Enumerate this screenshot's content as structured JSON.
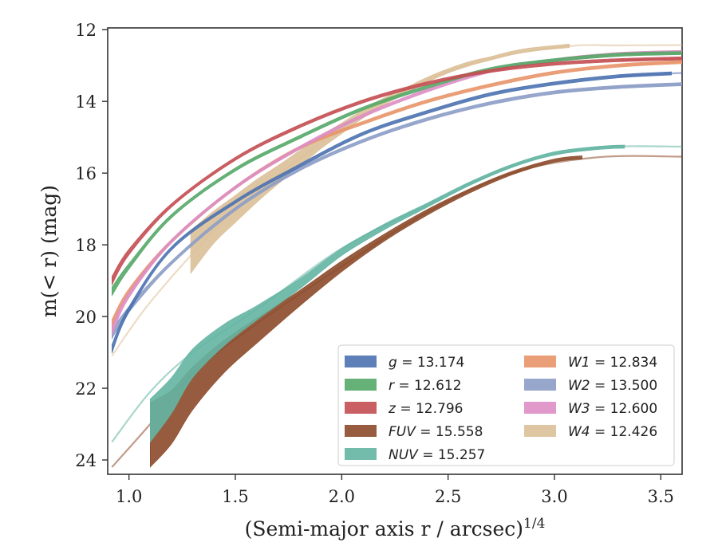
{
  "chart_data": {
    "type": "line",
    "xlabel": "(Semi-major axis r / arcsec)",
    "xlabel_sup": "1/4",
    "ylabel": "m(< r) (mag)",
    "xlim": [
      0.9,
      3.6
    ],
    "ylim": [
      24.4,
      11.95
    ],
    "y_inverted": true,
    "xticks": [
      1.0,
      1.5,
      2.0,
      2.5,
      3.0,
      3.5
    ],
    "xtick_labels": [
      "1.0",
      "1.5",
      "2.0",
      "2.5",
      "3.0",
      "3.5"
    ],
    "yticks": [
      12,
      14,
      16,
      18,
      20,
      22,
      24
    ],
    "ytick_labels": [
      "12",
      "14",
      "16",
      "18",
      "20",
      "22",
      "24"
    ],
    "grid": false,
    "legend_position": "bottom-right",
    "legend_columns": 2,
    "series": [
      {
        "name": "g",
        "legend": "g = 13.174",
        "color": "#4c72b0",
        "x": [
          0.92,
          1.0,
          1.2,
          1.5,
          1.8,
          2.1,
          2.4,
          2.7,
          3.0,
          3.3,
          3.55
        ],
        "y": [
          20.9,
          19.8,
          18.1,
          16.8,
          15.8,
          14.9,
          14.3,
          13.8,
          13.5,
          13.3,
          13.22
        ],
        "hw": [
          0.12,
          0.08,
          0.05,
          0.03,
          0.02,
          0.02,
          0.02,
          0.02,
          0.02,
          0.02,
          0.02
        ],
        "x_fade_from": 3.55
      },
      {
        "name": "r",
        "legend": "r = 12.612",
        "color": "#55a868",
        "x": [
          0.92,
          1.0,
          1.2,
          1.5,
          1.8,
          2.1,
          2.4,
          2.7,
          3.0,
          3.3,
          3.6
        ],
        "y": [
          19.3,
          18.6,
          17.2,
          15.9,
          15.0,
          14.2,
          13.6,
          13.1,
          12.85,
          12.7,
          12.65
        ],
        "hw": [
          0.12,
          0.08,
          0.05,
          0.03,
          0.02,
          0.02,
          0.02,
          0.02,
          0.02,
          0.02,
          0.02
        ],
        "x_fade_from": 3.5
      },
      {
        "name": "z",
        "legend": "z = 12.796",
        "color": "#c44e52",
        "x": [
          0.92,
          1.0,
          1.2,
          1.5,
          1.8,
          2.1,
          2.4,
          2.7,
          3.0,
          3.3,
          3.6
        ],
        "y": [
          19.0,
          18.2,
          16.9,
          15.6,
          14.7,
          14.0,
          13.5,
          13.15,
          12.95,
          12.85,
          12.8
        ],
        "hw": [
          0.12,
          0.08,
          0.05,
          0.03,
          0.02,
          0.02,
          0.02,
          0.02,
          0.02,
          0.02,
          0.02
        ],
        "x_fade_from": 3.45
      },
      {
        "name": "FUV",
        "legend": "FUV = 15.558",
        "color": "#8c4a2a",
        "x": [
          1.1,
          1.2,
          1.3,
          1.45,
          1.6,
          1.8,
          2.0,
          2.2,
          2.4,
          2.6,
          2.8,
          3.0,
          3.13
        ],
        "y": [
          23.3,
          22.8,
          22.0,
          21.1,
          20.4,
          19.5,
          18.6,
          17.8,
          17.1,
          16.5,
          16.0,
          15.65,
          15.56
        ],
        "hw": [
          0.9,
          0.75,
          0.6,
          0.45,
          0.35,
          0.22,
          0.15,
          0.1,
          0.08,
          0.06,
          0.05,
          0.04,
          0.04
        ],
        "faded_x": [
          0.92,
          1.1,
          1.3,
          1.6,
          2.0,
          2.4,
          2.8,
          3.2,
          3.6
        ],
        "faded_y": [
          24.2,
          23.0,
          21.6,
          20.2,
          18.6,
          17.1,
          16.0,
          15.56,
          15.54
        ]
      },
      {
        "name": "NUV",
        "legend": "NUV = 15.257",
        "color": "#64b5a3",
        "x": [
          1.1,
          1.2,
          1.3,
          1.45,
          1.6,
          1.8,
          2.0,
          2.2,
          2.4,
          2.6,
          2.8,
          3.0,
          3.2,
          3.33
        ],
        "y": [
          22.9,
          22.2,
          21.3,
          20.5,
          19.9,
          19.1,
          18.2,
          17.5,
          16.9,
          16.3,
          15.8,
          15.45,
          15.3,
          15.26
        ],
        "hw": [
          0.6,
          0.5,
          0.4,
          0.3,
          0.2,
          0.14,
          0.1,
          0.08,
          0.06,
          0.05,
          0.04,
          0.04,
          0.03,
          0.03
        ],
        "faded_x": [
          0.92,
          1.1,
          1.3,
          1.6,
          2.0,
          2.4,
          2.8,
          3.2,
          3.6
        ],
        "faded_y": [
          23.5,
          22.1,
          21.0,
          19.8,
          18.1,
          16.9,
          15.8,
          15.3,
          15.26
        ]
      },
      {
        "name": "W1",
        "legend": "W1 = 12.834",
        "color": "#e8956a",
        "x": [
          0.92,
          1.0,
          1.2,
          1.5,
          1.8,
          2.1,
          2.4,
          2.7,
          3.0,
          3.3,
          3.6
        ],
        "y": [
          20.2,
          19.3,
          17.9,
          16.4,
          15.3,
          14.6,
          14.0,
          13.55,
          13.2,
          13.0,
          12.9
        ],
        "hw": [
          0.12,
          0.08,
          0.05,
          0.03,
          0.02,
          0.02,
          0.02,
          0.02,
          0.02,
          0.02,
          0.02
        ],
        "x_fade_from": 3.35
      },
      {
        "name": "W2",
        "legend": "W2 = 13.500",
        "color": "#8c9dc6",
        "x": [
          0.92,
          1.0,
          1.2,
          1.5,
          1.8,
          2.1,
          2.4,
          2.7,
          3.0,
          3.3,
          3.6
        ],
        "y": [
          20.5,
          19.8,
          18.5,
          17.0,
          15.9,
          15.1,
          14.5,
          14.05,
          13.75,
          13.6,
          13.52
        ],
        "hw": [
          0.12,
          0.08,
          0.05,
          0.03,
          0.02,
          0.02,
          0.02,
          0.02,
          0.02,
          0.02,
          0.02
        ],
        "x_fade_from": 3.2
      },
      {
        "name": "W3",
        "legend": "W3 = 12.600",
        "color": "#dd8ec4",
        "x": [
          0.92,
          1.0,
          1.2,
          1.5,
          1.8,
          2.1,
          2.4,
          2.7,
          3.0,
          3.3,
          3.6
        ],
        "y": [
          20.4,
          19.4,
          17.9,
          16.4,
          15.3,
          14.4,
          13.7,
          13.15,
          12.85,
          12.68,
          12.62
        ],
        "hw": [
          0.12,
          0.08,
          0.05,
          0.03,
          0.02,
          0.02,
          0.02,
          0.02,
          0.02,
          0.02,
          0.02
        ],
        "x_fade_from": 3.35
      },
      {
        "name": "W4",
        "legend": "W4 = 12.426",
        "color": "#dcc098",
        "x": [
          1.29,
          1.4,
          1.5,
          1.6,
          1.7,
          1.8,
          1.9,
          2.0,
          2.1,
          2.2,
          2.3,
          2.4,
          2.5,
          2.6,
          2.7,
          2.8,
          2.9,
          3.07
        ],
        "y": [
          18.2,
          17.5,
          17.0,
          16.5,
          16.05,
          15.6,
          15.15,
          14.75,
          14.35,
          14.0,
          13.7,
          13.4,
          13.15,
          12.95,
          12.8,
          12.65,
          12.55,
          12.45
        ],
        "hw": [
          0.6,
          0.45,
          0.38,
          0.32,
          0.26,
          0.22,
          0.18,
          0.15,
          0.12,
          0.1,
          0.08,
          0.07,
          0.06,
          0.06,
          0.05,
          0.05,
          0.05,
          0.05
        ],
        "faded_x": [
          0.92,
          1.0,
          1.1,
          1.29,
          1.5,
          1.8,
          2.1,
          2.4,
          2.7,
          3.07,
          3.3,
          3.6
        ],
        "faded_y": [
          21.1,
          20.4,
          19.6,
          18.3,
          17.0,
          15.6,
          14.35,
          13.4,
          12.8,
          12.46,
          12.44,
          12.43
        ]
      }
    ]
  }
}
